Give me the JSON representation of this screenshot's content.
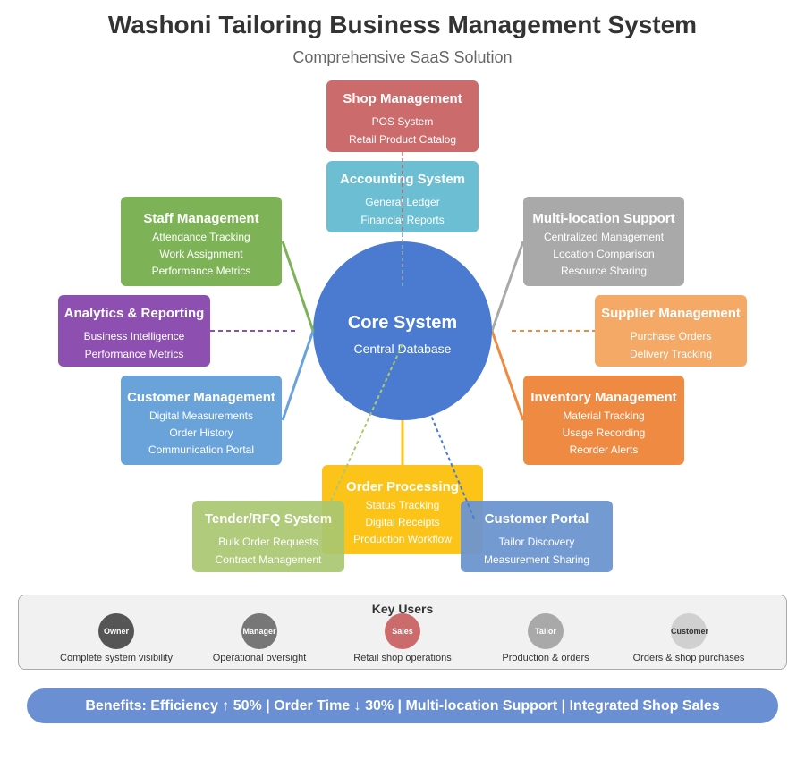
{
  "header": {
    "title": "Washoni Tailoring Business Management System",
    "subtitle": "Comprehensive SaaS Solution"
  },
  "core": {
    "title": "Core System",
    "subtitle": "Central Database"
  },
  "modules": {
    "shop": {
      "title": "Shop Management",
      "items": [
        "POS System",
        "Retail Product Catalog"
      ],
      "color": "#cc6b6b"
    },
    "accounting": {
      "title": "Accounting System",
      "items": [
        "General Ledger",
        "Financial Reports"
      ],
      "color": "#6cbfd3"
    },
    "staff": {
      "title": "Staff Management",
      "items": [
        "Attendance Tracking",
        "Work Assignment",
        "Performance Metrics"
      ],
      "color": "#7db356"
    },
    "multilocation": {
      "title": "Multi-location Support",
      "items": [
        "Centralized Management",
        "Location Comparison",
        "Resource Sharing"
      ],
      "color": "#a9a9a9"
    },
    "analytics": {
      "title": "Analytics & Reporting",
      "items": [
        "Business Intelligence",
        "Performance Metrics"
      ],
      "color": "#8d4fb0"
    },
    "supplier": {
      "title": "Supplier Management",
      "items": [
        "Purchase Orders",
        "Delivery Tracking"
      ],
      "color": "#f4a967"
    },
    "customer_mgmt": {
      "title": "Customer Management",
      "items": [
        "Digital Measurements",
        "Order History",
        "Communication Portal"
      ],
      "color": "#6aa3da"
    },
    "inventory": {
      "title": "Inventory Management",
      "items": [
        "Material Tracking",
        "Usage Recording",
        "Reorder Alerts"
      ],
      "color": "#ee8a42"
    },
    "order": {
      "title": "Order Processing",
      "items": [
        "Status Tracking",
        "Digital Receipts",
        "Production Workflow"
      ],
      "color": "#fcc419"
    },
    "tender": {
      "title": "Tender/RFQ System",
      "items": [
        "Bulk Order Requests",
        "Contract Management"
      ],
      "color": "#a9c770"
    },
    "portal": {
      "title": "Customer Portal",
      "items": [
        "Tailor Discovery",
        "Measurement Sharing"
      ],
      "color": "#6d95d0"
    }
  },
  "users": {
    "title": "Key Users",
    "list": [
      {
        "label": "Owner",
        "desc": "Complete system visibility",
        "color": "#555555"
      },
      {
        "label": "Manager",
        "desc": "Operational oversight",
        "color": "#777777"
      },
      {
        "label": "Sales",
        "desc": "Retail shop operations",
        "color": "#cc6b6b"
      },
      {
        "label": "Tailor",
        "desc": "Production & orders",
        "color": "#a9a9a9"
      },
      {
        "label": "Customer",
        "desc": "Orders & shop purchases",
        "color": "#d0d0d0"
      }
    ]
  },
  "benefits": {
    "text": "Benefits: Efficiency ↑ 50% | Order Time ↓ 30% | Multi-location Support | Integrated Shop Sales"
  }
}
